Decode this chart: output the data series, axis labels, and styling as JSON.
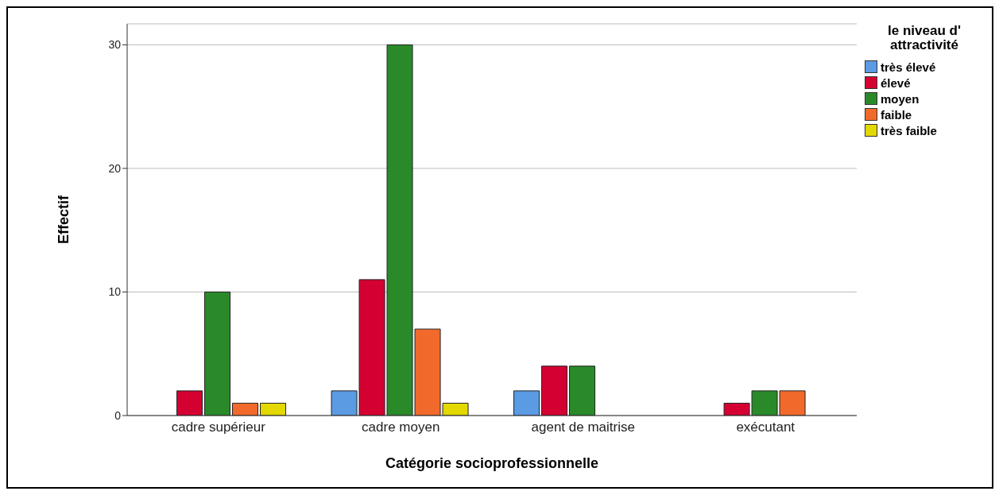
{
  "chart_data": {
    "type": "bar",
    "xlabel": "Catégorie socioprofessionnelle",
    "ylabel": "Effectif",
    "legend_title": "le niveau d' attractivité",
    "categories": [
      "cadre supérieur",
      "cadre moyen",
      "agent de maitrise",
      "exécutant"
    ],
    "series": [
      {
        "name": "très élevé",
        "color": "#5a9be3",
        "values": [
          null,
          2,
          2,
          null
        ]
      },
      {
        "name": "élevé",
        "color": "#d50032",
        "values": [
          2,
          11,
          4,
          1
        ]
      },
      {
        "name": "moyen",
        "color": "#2a8a2a",
        "values": [
          10,
          30,
          4,
          2
        ]
      },
      {
        "name": "faible",
        "color": "#f26a2b",
        "values": [
          1,
          7,
          null,
          2
        ]
      },
      {
        "name": "très faible",
        "color": "#e3d800",
        "values": [
          1,
          1,
          null,
          null
        ]
      }
    ],
    "ylim": [
      0,
      31.7
    ],
    "yticks": [
      0,
      10,
      20,
      30
    ],
    "grid": "y",
    "legend": "top right"
  }
}
